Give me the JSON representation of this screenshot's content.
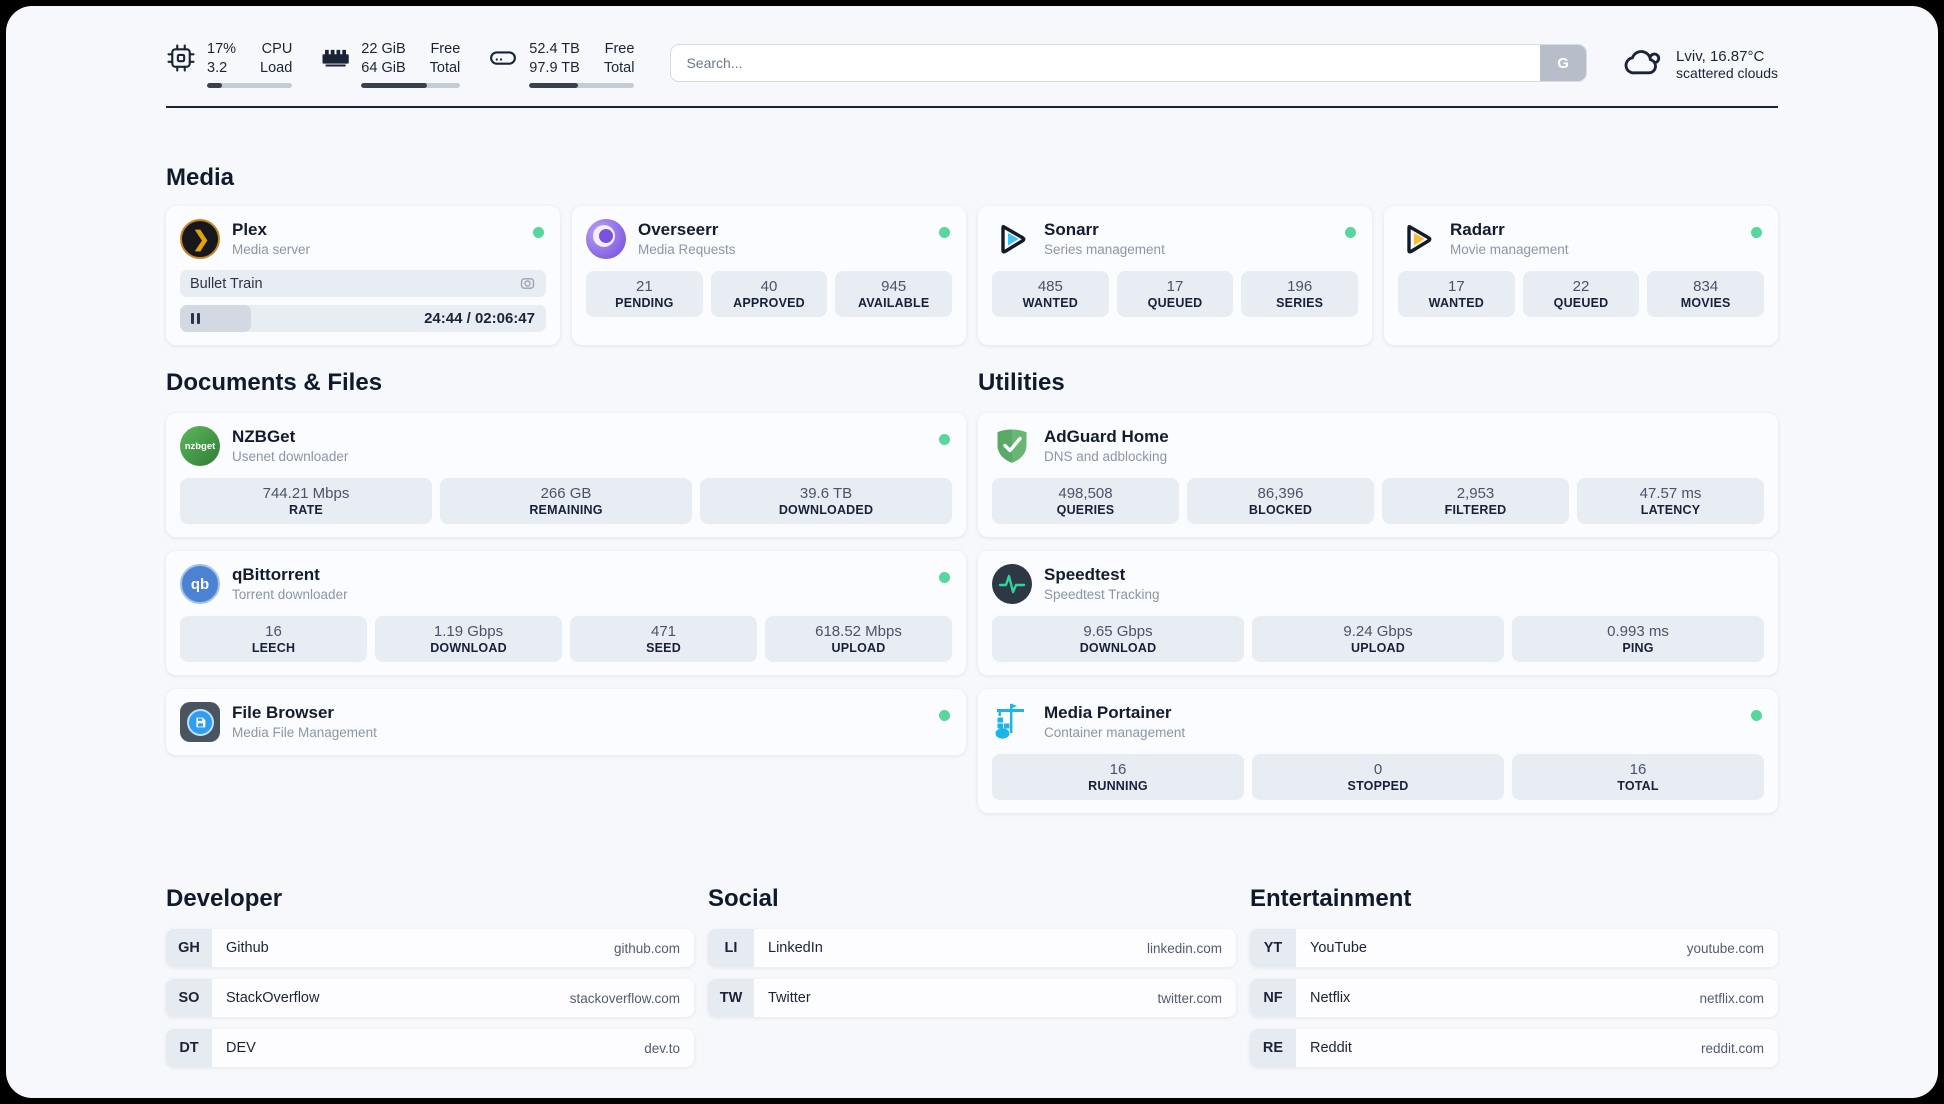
{
  "topbar": {
    "stats": [
      {
        "icon": "cpu-icon",
        "value1": "17%",
        "value2": "3.2",
        "label1": "CPU",
        "label2": "Load",
        "progress_pct": 17
      },
      {
        "icon": "memory-icon",
        "value1": "22 GiB",
        "value2": "64 GiB",
        "label1": "Free",
        "label2": "Total",
        "progress_pct": 66
      },
      {
        "icon": "disk-icon",
        "value1": "52.4 TB",
        "value2": "97.9 TB",
        "label1": "Free",
        "label2": "Total",
        "progress_pct": 46
      }
    ],
    "search": {
      "placeholder": "Search...",
      "button": "G"
    },
    "weather": {
      "icon": "cloud-icon",
      "line1": "Lviv, 16.87°C",
      "line2": "scattered clouds"
    }
  },
  "sections": {
    "media": "Media",
    "documents": "Documents & Files",
    "utilities": "Utilities",
    "developer": "Developer",
    "social": "Social",
    "entertainment": "Entertainment"
  },
  "apps": {
    "plex": {
      "title": "Plex",
      "subtitle": "Media server",
      "online": true,
      "now_playing": {
        "title": "Bullet Train",
        "time_display": "24:44 / 02:06:47",
        "progress_pct": 19.5
      }
    },
    "overseerr": {
      "title": "Overseerr",
      "subtitle": "Media Requests",
      "online": true,
      "stats": [
        {
          "value": "21",
          "label": "PENDING"
        },
        {
          "value": "40",
          "label": "APPROVED"
        },
        {
          "value": "945",
          "label": "AVAILABLE"
        }
      ]
    },
    "sonarr": {
      "title": "Sonarr",
      "subtitle": "Series management",
      "online": true,
      "stats": [
        {
          "value": "485",
          "label": "WANTED"
        },
        {
          "value": "17",
          "label": "QUEUED"
        },
        {
          "value": "196",
          "label": "SERIES"
        }
      ]
    },
    "radarr": {
      "title": "Radarr",
      "subtitle": "Movie management",
      "online": true,
      "stats": [
        {
          "value": "17",
          "label": "WANTED"
        },
        {
          "value": "22",
          "label": "QUEUED"
        },
        {
          "value": "834",
          "label": "MOVIES"
        }
      ]
    },
    "nzbget": {
      "title": "NZBGet",
      "subtitle": "Usenet downloader",
      "online": true,
      "icon_text": "nzbget",
      "stats": [
        {
          "value": "744.21 Mbps",
          "label": "RATE"
        },
        {
          "value": "266 GB",
          "label": "REMAINING"
        },
        {
          "value": "39.6 TB",
          "label": "DOWNLOADED"
        }
      ]
    },
    "qbittorrent": {
      "title": "qBittorrent",
      "subtitle": "Torrent downloader",
      "online": true,
      "icon_text": "qb",
      "stats": [
        {
          "value": "16",
          "label": "LEECH"
        },
        {
          "value": "1.19 Gbps",
          "label": "DOWNLOAD"
        },
        {
          "value": "471",
          "label": "SEED"
        },
        {
          "value": "618.52 Mbps",
          "label": "UPLOAD"
        }
      ]
    },
    "filebrowser": {
      "title": "File Browser",
      "subtitle": "Media File Management",
      "online": true
    },
    "adguard": {
      "title": "AdGuard Home",
      "subtitle": "DNS and adblocking",
      "stats": [
        {
          "value": "498,508",
          "label": "QUERIES"
        },
        {
          "value": "86,396",
          "label": "BLOCKED"
        },
        {
          "value": "2,953",
          "label": "FILTERED"
        },
        {
          "value": "47.57 ms",
          "label": "LATENCY"
        }
      ]
    },
    "speedtest": {
      "title": "Speedtest",
      "subtitle": "Speedtest Tracking",
      "stats": [
        {
          "value": "9.65 Gbps",
          "label": "DOWNLOAD"
        },
        {
          "value": "9.24 Gbps",
          "label": "UPLOAD"
        },
        {
          "value": "0.993 ms",
          "label": "PING"
        }
      ]
    },
    "portainer": {
      "title": "Media Portainer",
      "subtitle": "Container management",
      "online": true,
      "stats": [
        {
          "value": "16",
          "label": "RUNNING"
        },
        {
          "value": "0",
          "label": "STOPPED"
        },
        {
          "value": "16",
          "label": "TOTAL"
        }
      ]
    }
  },
  "bookmarks": {
    "developer": [
      {
        "abbr": "GH",
        "name": "Github",
        "url": "github.com"
      },
      {
        "abbr": "SO",
        "name": "StackOverflow",
        "url": "stackoverflow.com"
      },
      {
        "abbr": "DT",
        "name": "DEV",
        "url": "dev.to"
      }
    ],
    "social": [
      {
        "abbr": "LI",
        "name": "LinkedIn",
        "url": "linkedin.com"
      },
      {
        "abbr": "TW",
        "name": "Twitter",
        "url": "twitter.com"
      }
    ],
    "entertainment": [
      {
        "abbr": "YT",
        "name": "YouTube",
        "url": "youtube.com"
      },
      {
        "abbr": "NF",
        "name": "Netflix",
        "url": "netflix.com"
      },
      {
        "abbr": "RE",
        "name": "Reddit",
        "url": "reddit.com"
      }
    ]
  },
  "colors": {
    "status_online": "#57d79c",
    "plex_accent": "#e5a00d",
    "sonarr_accent": "#38c6f4",
    "radarr_accent": "#fcbc2f",
    "qbittorrent_accent": "#4b83d2",
    "nzbget_accent": "#3f9e3f",
    "filebrowser_accent": "#2e9df2",
    "adguard_accent": "#67b773",
    "speedtest_wave": "#2fd49a",
    "portainer_accent": "#1ab6ea",
    "progress_fill": "#39414f"
  }
}
